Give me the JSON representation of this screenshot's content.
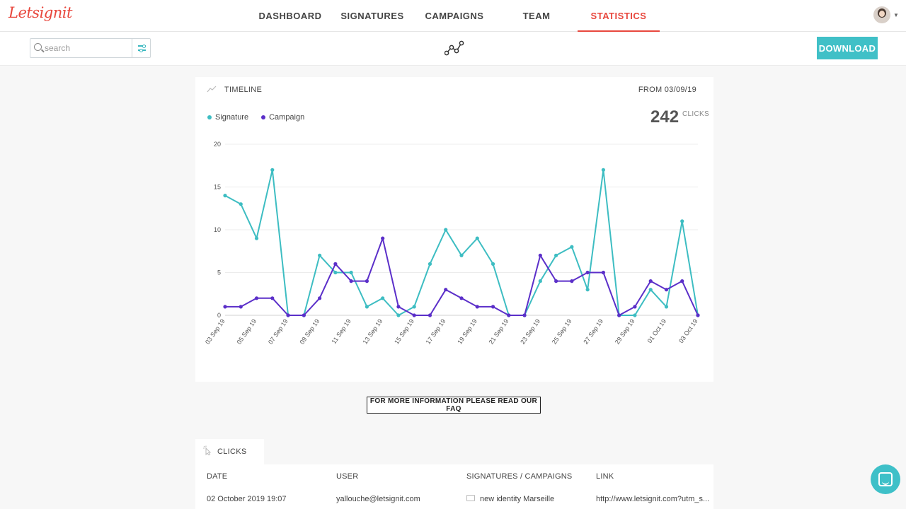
{
  "app": {
    "logo_text": "Letsignit"
  },
  "nav": {
    "items": [
      {
        "label": "DASHBOARD",
        "active": false
      },
      {
        "label": "SIGNATURES",
        "active": false
      },
      {
        "label": "CAMPAIGNS",
        "active": false
      },
      {
        "label": "TEAM",
        "active": false
      },
      {
        "label": "STATISTICS",
        "active": true
      }
    ],
    "active_color": "#e8473d"
  },
  "toolbar": {
    "search_placeholder": "search",
    "search_value": "",
    "download_label": "DOWNLOAD",
    "accent": "#40c0c7"
  },
  "timeline": {
    "title": "TIMELINE",
    "from_label": "FROM 03/09/19",
    "total_value": "242",
    "total_unit": "CLICKS"
  },
  "chart_data": {
    "type": "line",
    "x": [
      "03 Sep 19",
      "04 Sep 19",
      "05 Sep 19",
      "06 Sep 19",
      "07 Sep 19",
      "08 Sep 19",
      "09 Sep 19",
      "10 Sep 19",
      "11 Sep 19",
      "12 Sep 19",
      "13 Sep 19",
      "14 Sep 19",
      "15 Sep 19",
      "16 Sep 19",
      "17 Sep 19",
      "18 Sep 19",
      "19 Sep 19",
      "20 Sep 19",
      "21 Sep 19",
      "22 Sep 19",
      "23 Sep 19",
      "24 Sep 19",
      "25 Sep 19",
      "26 Sep 19",
      "27 Sep 19",
      "28 Sep 19",
      "29 Sep 19",
      "30 Sep 19",
      "01 Oct 19",
      "02 Oct 19",
      "03 Oct 19"
    ],
    "tick_labels": [
      "03 Sep 19",
      "05 Sep 19",
      "07 Sep 19",
      "09 Sep 19",
      "11 Sep 19",
      "13 Sep 19",
      "15 Sep 19",
      "17 Sep 19",
      "19 Sep 19",
      "21 Sep 19",
      "23 Sep 19",
      "25 Sep 19",
      "27 Sep 19",
      "29 Sep 19",
      "01 Oct 19",
      "03 Oct 19"
    ],
    "y_ticks": [
      0,
      5,
      10,
      15,
      20
    ],
    "ylim": [
      0,
      20
    ],
    "grid": true,
    "legend": "top-left",
    "series": [
      {
        "name": "Signature",
        "color": "#3dbdc2",
        "values": [
          14,
          13,
          9,
          17,
          0,
          0,
          7,
          5,
          5,
          1,
          2,
          0,
          1,
          6,
          10,
          7,
          9,
          6,
          0,
          0,
          4,
          7,
          8,
          3,
          17,
          0,
          0,
          3,
          1,
          11,
          0
        ]
      },
      {
        "name": "Campaign",
        "color": "#5b2fc9",
        "values": [
          1,
          1,
          2,
          2,
          0,
          0,
          2,
          6,
          4,
          4,
          9,
          1,
          0,
          0,
          3,
          2,
          1,
          1,
          0,
          0,
          7,
          4,
          4,
          5,
          5,
          0,
          1,
          4,
          3,
          4,
          0
        ]
      }
    ]
  },
  "faq": {
    "label": "FOR MORE INFORMATION PLEASE READ OUR FAQ"
  },
  "clicks": {
    "title": "CLICKS",
    "columns": [
      "DATE",
      "USER",
      "SIGNATURES / CAMPAIGNS",
      "LINK"
    ],
    "rows": [
      [
        "02 October 2019 19:07",
        "yallouche@letsignit.com",
        "new identity Marseille",
        "http://www.letsignit.com?utm_s..."
      ]
    ]
  }
}
